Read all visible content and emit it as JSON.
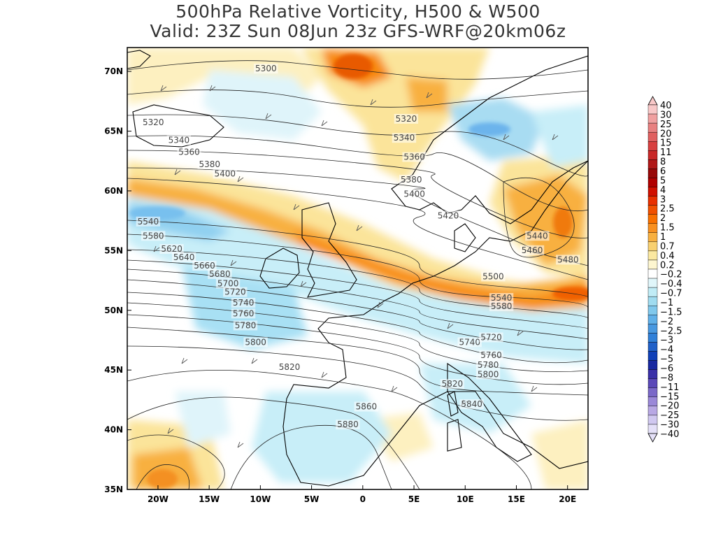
{
  "title": {
    "line1": "500hPa Relative Vorticity, H500 & W500",
    "line2": "Valid: 23Z Sun 08Jun 23z GFS-WRF@20km06z"
  },
  "axes": {
    "lon_ticks": [
      "20W",
      "15W",
      "10W",
      "5W",
      "0",
      "5E",
      "10E",
      "15E",
      "20E"
    ],
    "lat_ticks": [
      "70N",
      "65N",
      "60N",
      "55N",
      "50N",
      "45N",
      "40N",
      "35N"
    ]
  },
  "colorbar": {
    "labels": [
      "40",
      "30",
      "25",
      "20",
      "15",
      "11",
      "8",
      "6",
      "5",
      "4",
      "3",
      "2.5",
      "2",
      "1.5",
      "1",
      "0.7",
      "0.4",
      "0.2",
      "−0.2",
      "−0.4",
      "−0.7",
      "−1",
      "−1.5",
      "−2",
      "−2.5",
      "−3",
      "−4",
      "−5",
      "−6",
      "−8",
      "−11",
      "−15",
      "−20",
      "−25",
      "−30",
      "−40"
    ],
    "colors": [
      "#f8c8c8",
      "#f0a0a0",
      "#e88080",
      "#e06060",
      "#d84040",
      "#c82828",
      "#b01818",
      "#980808",
      "#b00000",
      "#d01000",
      "#e83000",
      "#f05000",
      "#f87000",
      "#f89020",
      "#f8b040",
      "#f8d070",
      "#fbe8a0",
      "#fdf6d0",
      "#ffffff",
      "#e0f6fa",
      "#c0ecf6",
      "#a0dcf0",
      "#80c8ec",
      "#60b0e8",
      "#4898e0",
      "#3080d8",
      "#2060c8",
      "#1040b8",
      "#1828a0",
      "#3a30a8",
      "#5a48b8",
      "#7a68c8",
      "#9a88d8",
      "#b8a8e4",
      "#d0c8f0",
      "#e4e0f8"
    ]
  },
  "contour_labels": [
    {
      "text": "5300",
      "lon": -10.5,
      "lat": 70.0
    },
    {
      "text": "5320",
      "lon": -21.5,
      "lat": 65.5
    },
    {
      "text": "5340",
      "lon": -19.0,
      "lat": 64.0
    },
    {
      "text": "5360",
      "lon": -18.0,
      "lat": 63.0
    },
    {
      "text": "5380",
      "lon": -16.0,
      "lat": 62.0
    },
    {
      "text": "5400",
      "lon": -14.5,
      "lat": 61.2
    },
    {
      "text": "5320",
      "lon": 3.2,
      "lat": 65.8
    },
    {
      "text": "5340",
      "lon": 3.0,
      "lat": 64.2
    },
    {
      "text": "5360",
      "lon": 4.0,
      "lat": 62.6
    },
    {
      "text": "5380",
      "lon": 3.7,
      "lat": 60.7
    },
    {
      "text": "5400",
      "lon": 4.0,
      "lat": 59.5
    },
    {
      "text": "5420",
      "lon": 7.3,
      "lat": 57.7
    },
    {
      "text": "5440",
      "lon": 16.0,
      "lat": 56.0
    },
    {
      "text": "5460",
      "lon": 15.5,
      "lat": 54.8
    },
    {
      "text": "5480",
      "lon": 19.0,
      "lat": 54.0
    },
    {
      "text": "5500",
      "lon": 11.7,
      "lat": 52.6
    },
    {
      "text": "5540",
      "lon": 12.5,
      "lat": 50.8
    },
    {
      "text": "5580",
      "lon": 12.5,
      "lat": 50.1
    },
    {
      "text": "5540",
      "lon": -22.0,
      "lat": 57.2
    },
    {
      "text": "5580",
      "lon": -21.5,
      "lat": 56.0
    },
    {
      "text": "5620",
      "lon": -19.7,
      "lat": 54.9
    },
    {
      "text": "5640",
      "lon": -18.5,
      "lat": 54.2
    },
    {
      "text": "5660",
      "lon": -16.5,
      "lat": 53.5
    },
    {
      "text": "5680",
      "lon": -15.0,
      "lat": 52.8
    },
    {
      "text": "5700",
      "lon": -14.2,
      "lat": 52.0
    },
    {
      "text": "5720",
      "lon": -13.5,
      "lat": 51.3
    },
    {
      "text": "5740",
      "lon": -12.7,
      "lat": 50.4
    },
    {
      "text": "5760",
      "lon": -12.7,
      "lat": 49.5
    },
    {
      "text": "5780",
      "lon": -12.5,
      "lat": 48.5
    },
    {
      "text": "5800",
      "lon": -11.5,
      "lat": 47.1
    },
    {
      "text": "5820",
      "lon": -8.2,
      "lat": 45.0
    },
    {
      "text": "5860",
      "lon": -0.7,
      "lat": 41.7
    },
    {
      "text": "5880",
      "lon": -2.5,
      "lat": 40.2
    },
    {
      "text": "5740",
      "lon": 9.4,
      "lat": 47.1
    },
    {
      "text": "5720",
      "lon": 11.5,
      "lat": 47.5
    },
    {
      "text": "5760",
      "lon": 11.5,
      "lat": 46.0
    },
    {
      "text": "5780",
      "lon": 11.2,
      "lat": 45.2
    },
    {
      "text": "5800",
      "lon": 11.2,
      "lat": 44.4
    },
    {
      "text": "5820",
      "lon": 7.7,
      "lat": 43.6
    },
    {
      "text": "5840",
      "lon": 9.6,
      "lat": 41.9
    }
  ]
}
